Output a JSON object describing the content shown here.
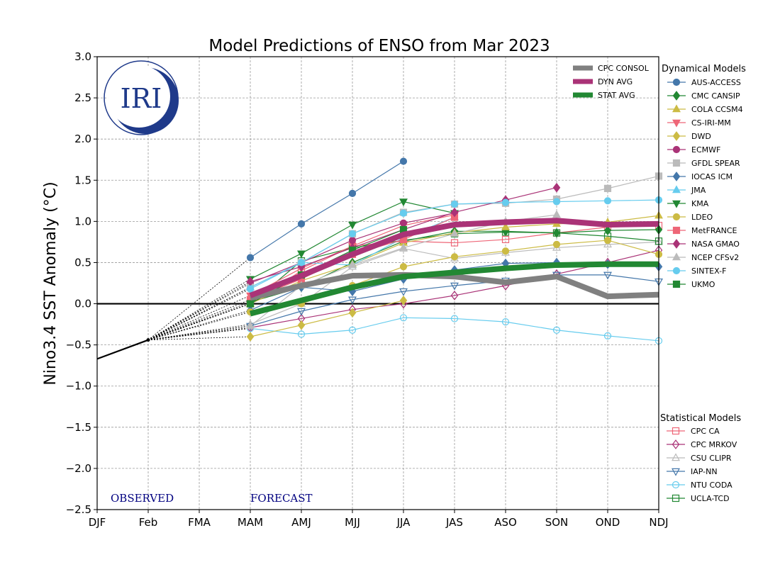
{
  "chart_data": {
    "type": "line",
    "title": "Model Predictions of ENSO from Mar 2023",
    "ylabel": "Nino3.4 SST Anomaly (°C)",
    "xlabel": "",
    "categories": [
      "DJF",
      "Feb",
      "FMA",
      "MAM",
      "AMJ",
      "MJJ",
      "JJA",
      "JAS",
      "ASO",
      "SON",
      "OND",
      "NDJ"
    ],
    "ylim": [
      -2.5,
      3.0
    ],
    "yticks": [
      "3.0",
      "2.5",
      "2.0",
      "1.5",
      "1.0",
      "0.5",
      "0.0",
      "−0.5",
      "−1.0",
      "−1.5",
      "−2.0",
      "−2.5"
    ],
    "ytick_values": [
      3.0,
      2.5,
      2.0,
      1.5,
      1.0,
      0.5,
      0.0,
      -0.5,
      -1.0,
      -1.5,
      -2.0,
      -2.5
    ],
    "grid": true,
    "annotations": {
      "observed": "OBSERVED",
      "forecast": "FORECAST",
      "logo": "IRI"
    },
    "observed": {
      "x": [
        0,
        1
      ],
      "values": [
        -0.67,
        -0.44
      ]
    },
    "forecast_start_index": 3,
    "legend_groups": {
      "dynamical": "Dynamical Models",
      "statistical": "Statistical Models"
    },
    "averages": [
      {
        "name": "CPC CONSOL",
        "color": "#808080",
        "values": [
          0.07,
          0.22,
          0.34,
          0.35,
          0.33,
          0.26,
          0.33,
          0.09,
          0.11
        ]
      },
      {
        "name": "DYN AVG",
        "color": "#aa3377",
        "values": [
          0.1,
          0.34,
          0.6,
          0.84,
          0.96,
          0.99,
          1.01,
          0.96,
          0.97
        ]
      },
      {
        "name": "STAT AVG",
        "color": "#228833",
        "values": [
          -0.12,
          0.04,
          0.2,
          0.33,
          0.38,
          0.43,
          0.47,
          0.48,
          0.48
        ]
      }
    ],
    "dynamical": [
      {
        "name": "AUS-ACCESS",
        "color": "#4477aa",
        "marker": "circle",
        "values": [
          0.56,
          0.97,
          1.34,
          1.73
        ]
      },
      {
        "name": "CMC CANSIP",
        "color": "#228833",
        "marker": "diamond",
        "values": [
          0.02,
          0.2,
          0.5,
          0.76,
          0.88,
          0.88,
          0.86,
          0.89,
          0.9
        ]
      },
      {
        "name": "COLA CCSM4",
        "color": "#ccbb44",
        "marker": "triangle-up",
        "values": [
          0.0,
          0.28,
          0.48,
          0.74,
          0.86,
          0.93,
          0.97,
          0.99,
          1.07
        ]
      },
      {
        "name": "CS-IRI-MM",
        "color": "#ee6677",
        "marker": "triangle-down",
        "values": [
          0.1,
          0.43,
          0.7,
          0.95,
          1.08
        ]
      },
      {
        "name": "DWD",
        "color": "#ccbb44",
        "marker": "diamond",
        "values": [
          -0.4,
          -0.26,
          -0.11,
          0.04
        ]
      },
      {
        "name": "ECMWF",
        "color": "#aa3377",
        "marker": "circle",
        "values": [
          0.25,
          0.5,
          0.77,
          0.98,
          1.1
        ]
      },
      {
        "name": "GFDL SPEAR",
        "color": "#bbbbbb",
        "marker": "square",
        "values": [
          0.2,
          0.5,
          0.85,
          1.11,
          1.21,
          1.22,
          1.27,
          1.4,
          1.55
        ]
      },
      {
        "name": "IOCAS ICM",
        "color": "#4477aa",
        "marker": "diamond",
        "values": [
          -0.08,
          0.2,
          0.15,
          0.3,
          0.41,
          0.49,
          0.5,
          0.48,
          0.45
        ]
      },
      {
        "name": "JMA",
        "color": "#66ccee",
        "marker": "triangle-up",
        "values": [
          0.2,
          0.5,
          0.47,
          0.8,
          1.05
        ]
      },
      {
        "name": "KMA",
        "color": "#228833",
        "marker": "triangle-down",
        "values": [
          0.3,
          0.61,
          0.96,
          1.24,
          1.1
        ]
      },
      {
        "name": "LDEO",
        "color": "#ccbb44",
        "marker": "circle",
        "values": [
          -0.1,
          0.0,
          0.22,
          0.45,
          0.57,
          0.64,
          0.72,
          0.77,
          0.6
        ]
      },
      {
        "name": "MetFRANCE",
        "color": "#ee6677",
        "marker": "square",
        "values": [
          0.05,
          0.3,
          0.6,
          0.78,
          1.05
        ]
      },
      {
        "name": "NASA GMAO",
        "color": "#aa3377",
        "marker": "diamond",
        "values": [
          0.27,
          0.45,
          0.68,
          0.9,
          1.11,
          1.26,
          1.41
        ]
      },
      {
        "name": "NCEP CFSv2",
        "color": "#bbbbbb",
        "marker": "triangle-up",
        "values": [
          -0.27,
          0.22,
          0.47,
          0.68,
          0.85,
          1.0,
          1.08
        ]
      },
      {
        "name": "SINTEX-F",
        "color": "#66ccee",
        "marker": "circle",
        "values": [
          0.18,
          0.5,
          0.85,
          1.1,
          1.21,
          1.23,
          1.24,
          1.25,
          1.26
        ]
      },
      {
        "name": "UKMO",
        "color": "#228833",
        "marker": "square",
        "values": [
          0.0,
          0.35,
          0.65,
          0.9
        ]
      }
    ],
    "statistical": [
      {
        "name": "CPC CA",
        "color": "#ee6677",
        "marker": "square",
        "values": [
          0.0,
          0.4,
          0.7,
          0.76,
          0.74,
          0.78,
          0.86,
          0.93,
          0.95
        ]
      },
      {
        "name": "CPC MRKOV",
        "color": "#aa3377",
        "marker": "diamond",
        "values": [
          -0.29,
          -0.18,
          -0.07,
          0.0,
          0.1,
          0.22,
          0.36,
          0.5,
          0.65
        ]
      },
      {
        "name": "CSU CLIPR",
        "color": "#bbbbbb",
        "marker": "triangle-up",
        "values": [
          -0.25,
          0.0,
          0.45,
          0.67,
          0.55,
          0.62,
          0.68,
          0.72,
          0.75
        ]
      },
      {
        "name": "IAP-NN",
        "color": "#4477aa",
        "marker": "triangle-down",
        "values": [
          -0.27,
          -0.09,
          0.05,
          0.15,
          0.22,
          0.28,
          0.35,
          0.35,
          0.27
        ]
      },
      {
        "name": "NTU CODA",
        "color": "#66ccee",
        "marker": "circle",
        "values": [
          -0.3,
          -0.37,
          -0.32,
          -0.17,
          -0.18,
          -0.22,
          -0.32,
          -0.39,
          -0.45
        ]
      },
      {
        "name": "UCLA-TCD",
        "color": "#228833",
        "marker": "square",
        "values": [
          0.0,
          0.52,
          0.68,
          0.77,
          0.85,
          0.87,
          0.86,
          0.82,
          0.76
        ]
      }
    ]
  }
}
